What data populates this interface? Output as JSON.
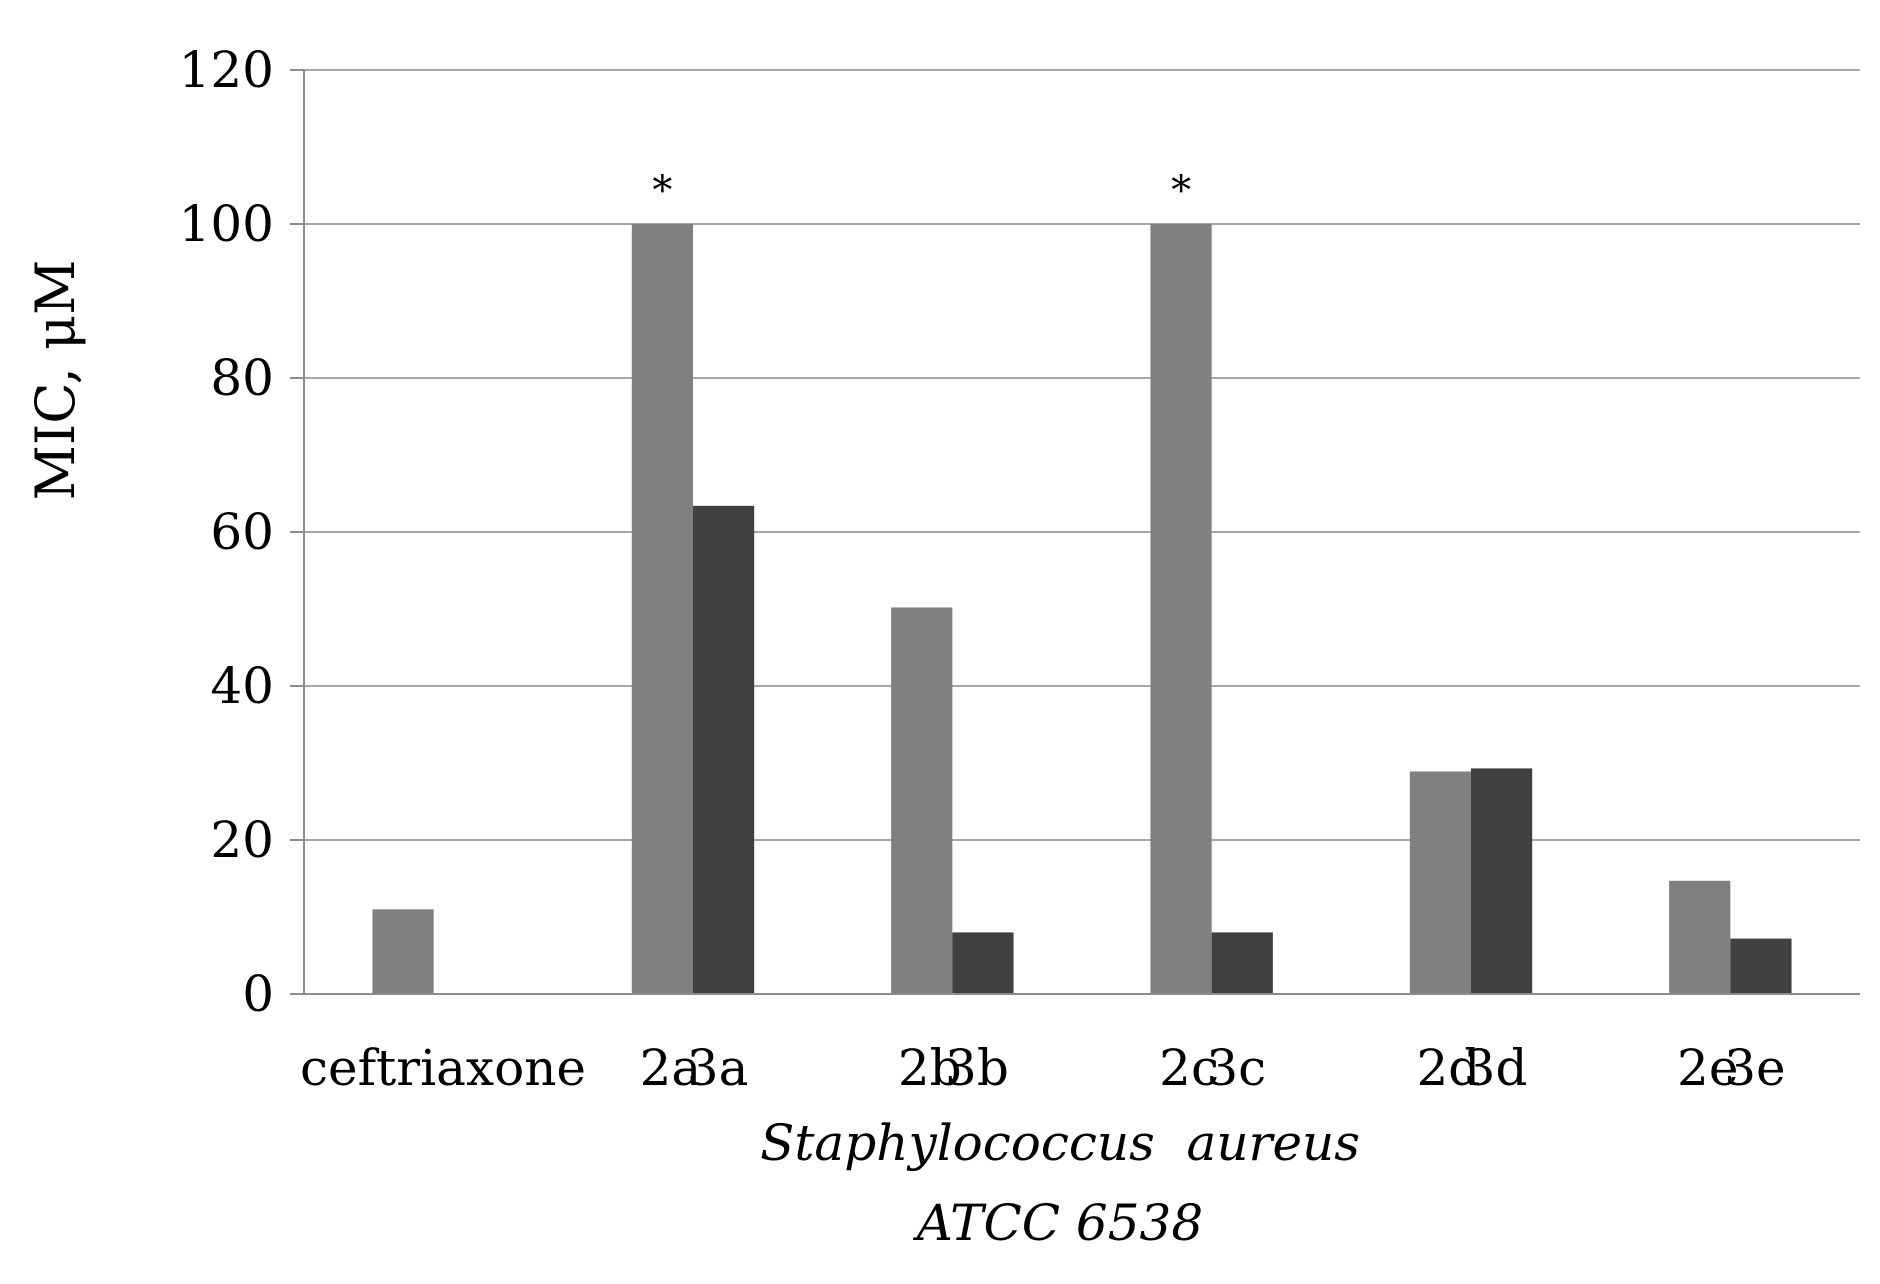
{
  "chart_data": {
    "type": "bar",
    "ylabel": "MIC, μM",
    "xlabel_lines": [
      "Staphylococcus  aureus",
      "ATCC 6538"
    ],
    "ylim": [
      0,
      120
    ],
    "yticks": [
      0,
      20,
      40,
      60,
      80,
      100,
      120
    ],
    "grid": true,
    "legend": "none",
    "groups": [
      {
        "bars": [
          {
            "label": "ceftriaxone",
            "value": 11,
            "color": "#808080",
            "star": false
          }
        ]
      },
      {
        "bars": [
          {
            "label": "2a",
            "value": 100,
            "color": "#808080",
            "star": true
          },
          {
            "label": "3a",
            "value": 63.4,
            "color": "#404040",
            "star": false
          }
        ]
      },
      {
        "bars": [
          {
            "label": "2b",
            "value": 50.2,
            "color": "#808080",
            "star": false
          },
          {
            "label": "3b",
            "value": 8,
            "color": "#404040",
            "star": false
          }
        ]
      },
      {
        "bars": [
          {
            "label": "2c",
            "value": 100,
            "color": "#808080",
            "star": true
          },
          {
            "label": "3c",
            "value": 8,
            "color": "#404040",
            "star": false
          }
        ]
      },
      {
        "bars": [
          {
            "label": "2d",
            "value": 28.9,
            "color": "#808080",
            "star": false
          },
          {
            "label": "3d",
            "value": 29.3,
            "color": "#404040",
            "star": false
          }
        ]
      },
      {
        "bars": [
          {
            "label": "2e",
            "value": 14.7,
            "color": "#808080",
            "star": false
          },
          {
            "label": "3e",
            "value": 7.2,
            "color": "#404040",
            "star": false
          }
        ]
      }
    ],
    "star_symbol": "*"
  }
}
